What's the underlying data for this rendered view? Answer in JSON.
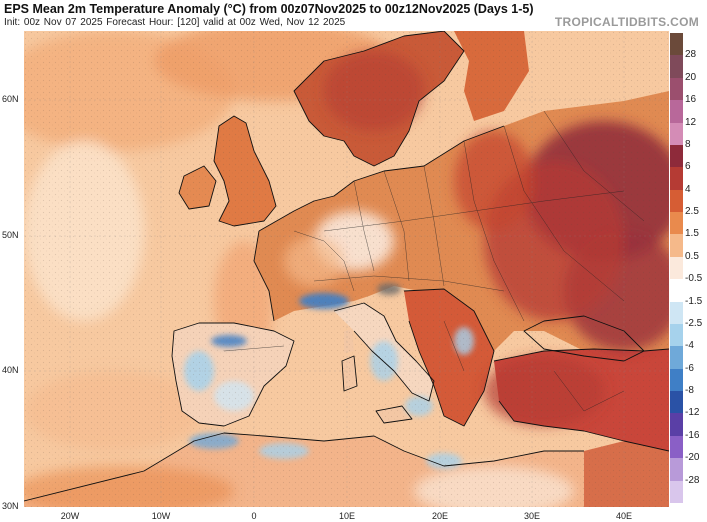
{
  "header": {
    "title": "EPS Mean 2m Temperature Anomaly (°C) from 00z07Nov2025 to 00z12Nov2025 (Days 1-5)",
    "subtitle": "Init: 00z Nov 07 2025   Forecast Hour: [120]   valid at 00z Wed, Nov 12 2025",
    "brand": "TROPICALTIDBITS.COM"
  },
  "map": {
    "lat_labels": [
      "60N",
      "50N",
      "40N",
      "30N"
    ],
    "lon_labels": [
      "20W",
      "10W",
      "0",
      "10E",
      "20E",
      "30E",
      "40E"
    ],
    "colors": {
      "ocean": "#f7c9a0",
      "land_warm": "#e98a4d",
      "land_hot": "#c4452e",
      "land_very_hot": "#8e2a3a",
      "land_neutral": "#fbe9dc",
      "land_cool": "#a6d2ec",
      "land_cold": "#3f7fc6",
      "africa": "#f3b48a",
      "border": "#111111"
    }
  },
  "colorbar": {
    "labels": [
      "28",
      "20",
      "16",
      "12",
      "8",
      "6",
      "4",
      "2.5",
      "1.5",
      "0.5",
      "-0.5",
      "-1.5",
      "-2.5",
      "-4",
      "-6",
      "-8",
      "-12",
      "-16",
      "-20",
      "-28"
    ],
    "colors": [
      "#6b4a3a",
      "#7f4a5a",
      "#9b4f6e",
      "#b8689a",
      "#d48cb6",
      "#8e2a3a",
      "#b53b34",
      "#d65d34",
      "#e98a4d",
      "#f5b98a",
      "#fbe9dc",
      "#ffffff",
      "#cfe6f4",
      "#a6d2ec",
      "#6fa9d9",
      "#3f7fc6",
      "#2a52a6",
      "#5a3fa6",
      "#8a5fc6",
      "#b89ad9"
    ]
  }
}
